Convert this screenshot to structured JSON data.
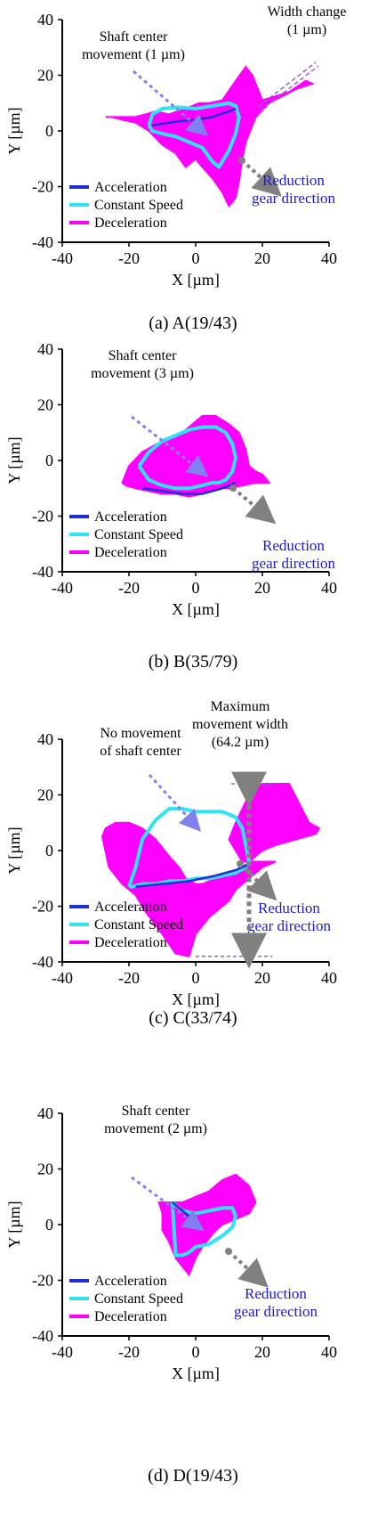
{
  "colors": {
    "acceleration": "#1f2fd6",
    "constant_speed": "#2fe4f2",
    "deceleration": "#ff00ff",
    "axis": "#000000",
    "shaft_arrow": "#8080f0",
    "gear_arrow": "#808080",
    "annotation_blue": "#1a1ad6",
    "width_line": "#9a60d0"
  },
  "legend": {
    "acceleration": "Acceleration",
    "constant_speed": "Constant Speed",
    "deceleration": "Deceleration"
  },
  "axis_labels": {
    "x": "X [µm]",
    "y": "Y [µm]"
  },
  "panels": [
    {
      "caption": "(a)  A(19/43)",
      "annotations": {
        "shaft_line1": "Shaft center",
        "shaft_line2": "movement (1 µm)",
        "extra_line1": "Width change",
        "extra_line2": "(1 µm)",
        "gear_line1": "Reduction",
        "gear_line2": "gear direction"
      }
    },
    {
      "caption": "(b)  B(35/79)",
      "annotations": {
        "shaft_line1": "Shaft center",
        "shaft_line2": "movement (3 µm)",
        "gear_line1": "Reduction",
        "gear_line2": "gear direction"
      }
    },
    {
      "caption": "(c)  C(33/74)",
      "annotations": {
        "shaft_line1": "No movement",
        "shaft_line2": "of shaft center",
        "extra_line1": "Maximum",
        "extra_line2": "movement width",
        "extra_line3": "(64.2 µm)",
        "gear_line1": "Reduction",
        "gear_line2": "gear direction"
      }
    },
    {
      "caption": "(d)  D(19/43)",
      "annotations": {
        "shaft_line1": "Shaft center",
        "shaft_line2": "movement (2 µm)",
        "gear_line1": "Reduction",
        "gear_line2": "gear direction"
      }
    }
  ],
  "chart_data": [
    {
      "type": "line",
      "xlim": [
        -40,
        40
      ],
      "ylim": [
        -40,
        40
      ],
      "xticks": [
        -40,
        -20,
        0,
        20,
        40
      ],
      "yticks": [
        -40,
        -20,
        0,
        20,
        40
      ],
      "xlabel": "X [µm]",
      "ylabel": "Y [µm]",
      "legend_position": "bottom-left",
      "series": [
        {
          "name": "Deceleration",
          "fill": true,
          "x": [
            -27,
            -18,
            -12,
            -8,
            -3,
            1,
            4,
            8,
            12,
            15,
            17,
            20,
            28,
            33,
            35,
            30,
            22,
            18,
            15,
            14,
            13,
            12,
            10,
            8,
            5,
            2,
            0,
            -3,
            -6,
            -10,
            -14,
            -18,
            -22,
            -25,
            -27
          ],
          "y": [
            5,
            5,
            7,
            6,
            8,
            10,
            10,
            11,
            18,
            23,
            20,
            11,
            14,
            18,
            17,
            15,
            10,
            5,
            -4,
            -10,
            -18,
            -24,
            -27,
            -22,
            -17,
            -13,
            -10,
            -13,
            -8,
            -5,
            0,
            3,
            4,
            5,
            5
          ]
        },
        {
          "name": "Constant Speed",
          "x": [
            -14,
            -13,
            -10,
            -5,
            0,
            5,
            10,
            12,
            13,
            12,
            10,
            8,
            7,
            5,
            2,
            -2,
            -6,
            -10,
            -13,
            -14
          ],
          "y": [
            2,
            6,
            8,
            8.5,
            8,
            9,
            10,
            9,
            5,
            -1,
            -7,
            -11,
            -13,
            -11,
            -6,
            -4,
            -2,
            -1,
            0,
            2
          ]
        },
        {
          "name": "Acceleration",
          "x": [
            -13,
            -5,
            0,
            5,
            10,
            12
          ],
          "y": [
            2,
            3.5,
            4,
            5,
            7,
            8
          ]
        }
      ]
    },
    {
      "type": "line",
      "xlim": [
        -40,
        40
      ],
      "ylim": [
        -40,
        40
      ],
      "xticks": [
        -40,
        -20,
        0,
        20,
        40
      ],
      "yticks": [
        -40,
        -20,
        0,
        20,
        40
      ],
      "xlabel": "X [µm]",
      "ylabel": "Y [µm]",
      "legend_position": "bottom-left",
      "series": [
        {
          "name": "Deceleration",
          "fill": true,
          "x": [
            -22,
            -20,
            -16,
            -10,
            -4,
            0,
            2,
            6,
            10,
            13,
            15,
            16,
            18,
            20,
            22,
            18,
            14,
            10,
            6,
            2,
            -2,
            -6,
            -10,
            -14,
            -18,
            -21,
            -22
          ],
          "y": [
            -8,
            -2,
            3,
            7,
            10,
            14,
            16,
            16,
            13,
            10,
            4,
            -2,
            -4,
            -5,
            -8,
            -8,
            -9,
            -10,
            -10,
            -12,
            -13,
            -12,
            -12,
            -11,
            -10,
            -9,
            -8
          ]
        },
        {
          "name": "Constant Speed",
          "x": [
            -17,
            -14,
            -10,
            -6,
            -2,
            2,
            6,
            9,
            11,
            12,
            11,
            9,
            7,
            5,
            2,
            -2,
            -6,
            -10,
            -14,
            -17
          ],
          "y": [
            -2,
            3,
            7,
            9,
            11,
            12,
            12,
            10,
            6,
            1,
            -4,
            -7,
            -8,
            -8,
            -9,
            -10,
            -10,
            -9,
            -7,
            -2
          ]
        },
        {
          "name": "Acceleration",
          "x": [
            -16,
            -10,
            -4,
            2,
            8,
            12
          ],
          "y": [
            -10,
            -11,
            -12,
            -12,
            -10,
            -8
          ]
        }
      ]
    },
    {
      "type": "line",
      "xlim": [
        -40,
        40
      ],
      "ylim": [
        -40,
        40
      ],
      "xticks": [
        -40,
        -20,
        0,
        20,
        40
      ],
      "yticks": [
        -40,
        -20,
        0,
        20,
        40
      ],
      "xlabel": "X [µm]",
      "ylabel": "Y [µm]",
      "legend_position": "bottom-left",
      "series": [
        {
          "name": "Deceleration",
          "fill": true,
          "x": [
            -28,
            -26,
            -22,
            -18,
            -15,
            -10,
            -6,
            -2,
            0,
            4,
            8,
            10,
            12,
            16,
            20,
            24,
            14,
            10,
            12,
            16,
            20,
            28,
            34,
            37,
            36,
            30,
            24,
            20,
            16,
            12,
            8,
            4,
            2,
            0,
            -3,
            -5,
            -8,
            -12,
            -16,
            -20,
            -24,
            -27,
            -28
          ],
          "y": [
            5,
            -6,
            -12,
            -16,
            -22,
            -30,
            -37,
            -38,
            -30,
            -24,
            -20,
            -18,
            -14,
            -10,
            -6,
            -4,
            -4,
            4,
            10,
            20,
            24,
            24,
            10,
            8,
            6,
            4,
            2,
            0,
            -4,
            -8,
            -10,
            -11,
            -12,
            -12,
            -10,
            -6,
            -2,
            4,
            8,
            10,
            10,
            8,
            5
          ]
        },
        {
          "name": "Constant Speed",
          "x": [
            -20,
            -18,
            -16,
            -12,
            -8,
            -4,
            0,
            4,
            8,
            12,
            14,
            16,
            15,
            12,
            8,
            4,
            0,
            -4,
            -8,
            -12,
            -16,
            -19,
            -20
          ],
          "y": [
            -13,
            -6,
            4,
            11,
            15,
            15,
            14,
            14,
            14,
            12,
            8,
            -4,
            -6,
            -8,
            -9,
            -10,
            -10,
            -11,
            -11,
            -12,
            -12,
            -13,
            -13
          ]
        },
        {
          "name": "Acceleration",
          "x": [
            -18,
            -10,
            -2,
            6,
            12,
            16
          ],
          "y": [
            -13,
            -12,
            -11,
            -9,
            -7,
            -5
          ]
        }
      ]
    },
    {
      "type": "line",
      "xlim": [
        -40,
        40
      ],
      "ylim": [
        -40,
        40
      ],
      "xticks": [
        -40,
        -20,
        0,
        20,
        40
      ],
      "yticks": [
        -40,
        -20,
        0,
        20,
        40
      ],
      "xlabel": "X [µm]",
      "ylabel": "Y [µm]",
      "legend_position": "bottom-left",
      "series": [
        {
          "name": "Deceleration",
          "fill": true,
          "x": [
            -11,
            -8,
            -4,
            0,
            4,
            8,
            12,
            16,
            18,
            16,
            12,
            8,
            6,
            4,
            2,
            0,
            -2,
            -4,
            -6,
            -8,
            -10,
            -10,
            -11
          ],
          "y": [
            8,
            8,
            8,
            10,
            12,
            16,
            18,
            14,
            8,
            4,
            2,
            0,
            -2,
            -5,
            -8,
            -12,
            -18,
            -15,
            -12,
            -6,
            -2,
            4,
            8
          ]
        },
        {
          "name": "Constant Speed",
          "x": [
            -7,
            -6,
            -4,
            0,
            4,
            8,
            11,
            12,
            11,
            8,
            4,
            0,
            -2,
            -4,
            -6,
            -7
          ],
          "y": [
            8,
            7,
            5,
            4,
            5,
            6,
            6,
            3,
            -1,
            -4,
            -7,
            -8,
            -10,
            -11,
            -11,
            8
          ]
        },
        {
          "name": "Acceleration",
          "x": [
            -7,
            -5,
            -3,
            0
          ],
          "y": [
            8,
            6,
            4,
            1
          ]
        }
      ]
    }
  ]
}
